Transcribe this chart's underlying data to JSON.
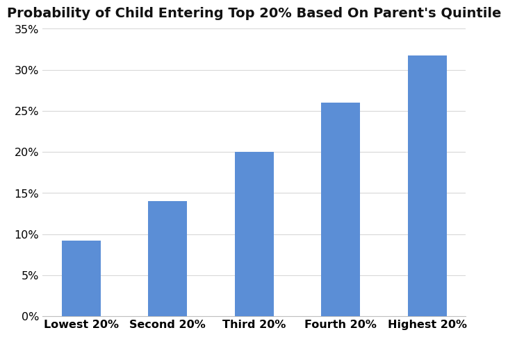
{
  "title": "Probability of Child Entering Top 20% Based On Parent's Quintile",
  "categories": [
    "Lowest 20%",
    "Second 20%",
    "Third 20%",
    "Fourth 20%",
    "Highest 20%"
  ],
  "values": [
    0.092,
    0.14,
    0.2,
    0.26,
    0.317
  ],
  "bar_color": "#5b8ed6",
  "ylim": [
    0,
    0.35
  ],
  "yticks": [
    0,
    0.05,
    0.1,
    0.15,
    0.2,
    0.25,
    0.3,
    0.35
  ],
  "title_fontsize": 14,
  "tick_fontsize": 11.5,
  "background_color": "#ffffff",
  "grid_color": "#d8d8d8",
  "bar_width": 0.45
}
